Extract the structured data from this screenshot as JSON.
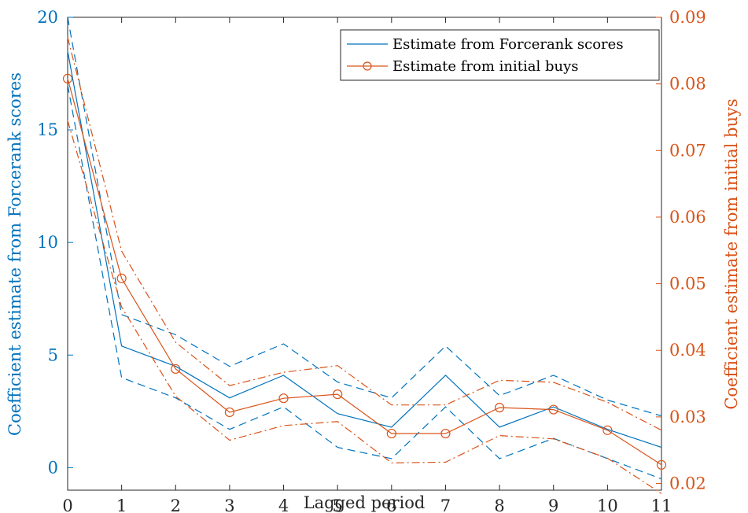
{
  "chart_data": {
    "type": "line",
    "xlabel": "Lagged period",
    "ylabel_left": "Coefficient estimate from Forcerank scores",
    "ylabel_right": "Coefficient estimate from initial buys",
    "xlim": [
      0,
      11
    ],
    "ylim_left": [
      -1,
      20
    ],
    "ylim_right": [
      0.019,
      0.09
    ],
    "x_ticks": [
      0,
      1,
      2,
      3,
      4,
      5,
      6,
      7,
      8,
      9,
      10,
      11
    ],
    "y_ticks_left": [
      0,
      5,
      10,
      15,
      20
    ],
    "y_ticks_right": [
      "0.02",
      "0.03",
      "0.04",
      "0.05",
      "0.06",
      "0.07",
      "0.08",
      "0.09"
    ],
    "legend_position": "top-right",
    "grid": false,
    "colors": {
      "left": "#0072BD",
      "right": "#D95319"
    },
    "x": [
      0,
      1,
      2,
      3,
      4,
      5,
      6,
      7,
      8,
      9,
      10,
      11
    ],
    "series": [
      {
        "name": "Estimate from Forcerank scores",
        "axis": "left",
        "style": "solid",
        "values": [
          18.5,
          5.4,
          4.5,
          3.1,
          4.1,
          2.4,
          1.8,
          4.1,
          1.8,
          2.7,
          1.7,
          0.9
        ]
      },
      {
        "axis": "left",
        "style": "dashed",
        "values": [
          20.0,
          6.8,
          5.9,
          4.5,
          5.5,
          3.8,
          3.1,
          5.4,
          3.2,
          4.1,
          3.0,
          2.3
        ]
      },
      {
        "axis": "left",
        "style": "dashed",
        "values": [
          17.0,
          4.0,
          3.1,
          1.7,
          2.7,
          0.9,
          0.4,
          2.7,
          0.4,
          1.3,
          0.4,
          -0.5
        ]
      },
      {
        "name": "Estimate from initial buys",
        "axis": "right",
        "style": "solid",
        "marker": "circle",
        "values": [
          0.0808,
          0.0508,
          0.0372,
          0.0307,
          0.0328,
          0.0334,
          0.0275,
          0.0275,
          0.0314,
          0.0311,
          0.028,
          0.0228
        ]
      },
      {
        "axis": "right",
        "style": "dashdot",
        "values": [
          0.087,
          0.0549,
          0.0412,
          0.0347,
          0.0367,
          0.0377,
          0.0318,
          0.0318,
          0.0355,
          0.0352,
          0.0322,
          0.028
        ]
      },
      {
        "axis": "right",
        "style": "dashdot",
        "values": [
          0.0745,
          0.0465,
          0.0331,
          0.0265,
          0.0287,
          0.0293,
          0.0231,
          0.0232,
          0.0272,
          0.0267,
          0.0238,
          0.0185
        ]
      }
    ]
  }
}
